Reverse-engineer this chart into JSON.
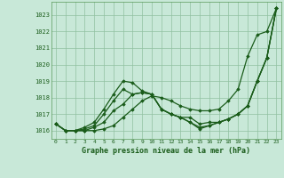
{
  "title": "Graphe pression niveau de la mer (hPa)",
  "background_color": "#c8e8d8",
  "grid_color": "#90c0a0",
  "line_color": "#1a5c1a",
  "marker_color": "#1a5c1a",
  "x_ticks": [
    0,
    1,
    2,
    3,
    4,
    5,
    6,
    7,
    8,
    9,
    10,
    11,
    12,
    13,
    14,
    15,
    16,
    17,
    18,
    19,
    20,
    21,
    22,
    23
  ],
  "ylim": [
    1015.5,
    1023.8
  ],
  "yticks": [
    1016,
    1017,
    1018,
    1019,
    1020,
    1021,
    1022,
    1023
  ],
  "series": [
    [
      1016.4,
      1016.0,
      1016.0,
      1016.0,
      1016.0,
      1016.1,
      1016.3,
      1016.8,
      1017.3,
      1017.8,
      1018.1,
      1018.0,
      1017.8,
      1017.5,
      1017.3,
      1017.2,
      1017.2,
      1017.3,
      1017.8,
      1018.5,
      1020.5,
      1021.8,
      1022.0,
      1023.4
    ],
    [
      1016.4,
      1016.0,
      1016.0,
      1016.0,
      1016.2,
      1016.5,
      1017.2,
      1017.6,
      1018.2,
      1018.3,
      1018.2,
      1017.3,
      1017.0,
      1016.8,
      1016.8,
      1016.4,
      1016.5,
      1016.5,
      1016.7,
      1017.0,
      1017.5,
      1019.0,
      1020.4,
      1023.4
    ],
    [
      1016.4,
      1016.0,
      1016.0,
      1016.1,
      1016.3,
      1017.0,
      1017.8,
      1018.5,
      1018.2,
      1018.3,
      1018.2,
      1017.3,
      1017.0,
      1016.8,
      1016.5,
      1016.2,
      1016.3,
      1016.5,
      1016.7,
      1017.0,
      1017.5,
      1019.0,
      1020.4,
      1023.4
    ],
    [
      1016.4,
      1016.0,
      1016.0,
      1016.2,
      1016.5,
      1017.3,
      1018.2,
      1019.0,
      1018.9,
      1018.4,
      1018.2,
      1017.3,
      1017.0,
      1016.8,
      1016.5,
      1016.1,
      1016.3,
      1016.5,
      1016.7,
      1017.0,
      1017.5,
      1019.0,
      1020.4,
      1023.4
    ]
  ]
}
